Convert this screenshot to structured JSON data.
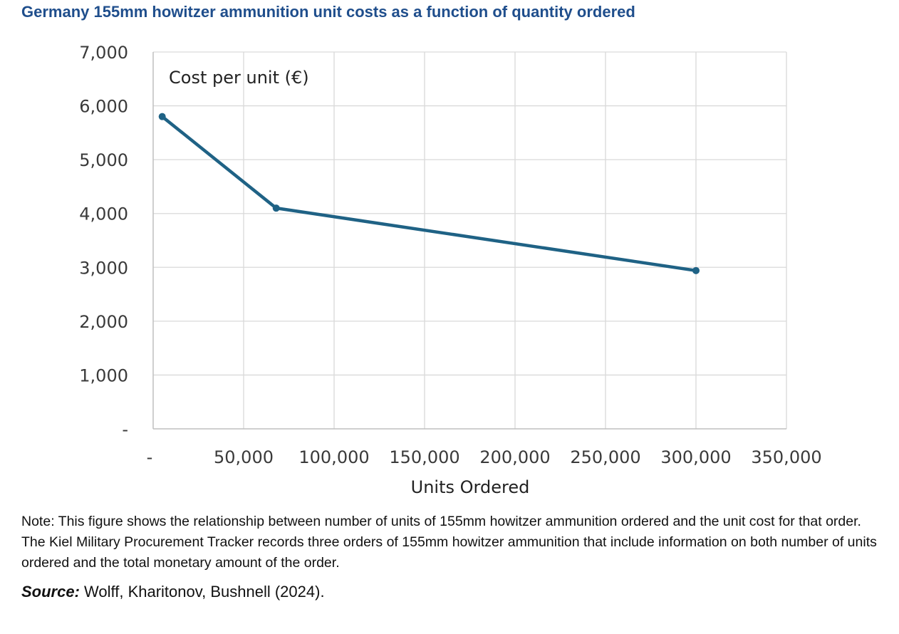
{
  "figure_title": "Germany 155mm howitzer ammunition unit costs as a function of quantity ordered",
  "chart_data": {
    "type": "line",
    "series": [
      {
        "name": "Cost per unit (€)",
        "color": "#1f6285",
        "points": [
          {
            "x": 5000,
            "y": 5800
          },
          {
            "x": 68000,
            "y": 4100
          },
          {
            "x": 300000,
            "y": 2940
          }
        ]
      }
    ],
    "xlabel": "Units Ordered",
    "ylabel": "",
    "xlim": [
      0,
      350000
    ],
    "ylim": [
      0,
      7000
    ],
    "x_ticks": [
      0,
      50000,
      100000,
      150000,
      200000,
      250000,
      300000,
      350000
    ],
    "x_tick_labels": [
      "-",
      "50,000",
      "100,000",
      "150,000",
      "200,000",
      "250,000",
      "300,000",
      "350,000"
    ],
    "y_ticks": [
      0,
      1000,
      2000,
      3000,
      4000,
      5000,
      6000,
      7000
    ],
    "y_tick_labels": [
      "-",
      "1,000",
      "2,000",
      "3,000",
      "4,000",
      "5,000",
      "6,000",
      "7,000"
    ],
    "grid": true,
    "legend": "inside top-left"
  },
  "note": "Note: This figure shows the relationship between number of units of 155mm howitzer ammunition ordered and the unit cost for that order. The Kiel Military Procurement Tracker records three orders of 155mm howitzer ammunition that include information on both number of units ordered and the total monetary amount of the order.",
  "source": {
    "label": "Source:",
    "text": " Wolff, Kharitonov, Bushnell (2024)."
  }
}
